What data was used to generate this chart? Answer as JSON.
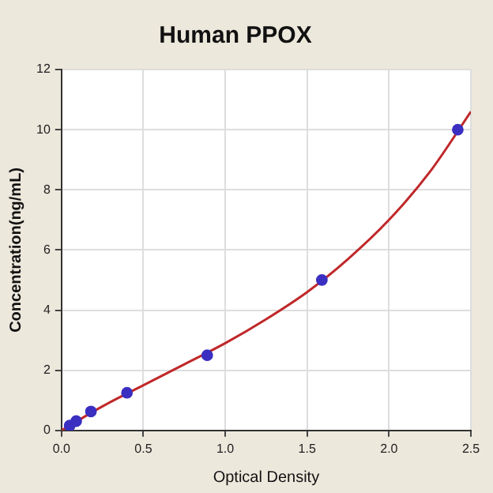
{
  "chart_data": {
    "type": "scatter",
    "title": "Human PPOX",
    "xlabel": "Optical Density",
    "ylabel": "Concentration(ng/mL)",
    "xlim": [
      0,
      2.5
    ],
    "xticks": [
      {
        "value": 0,
        "label": "0.0"
      },
      0.5,
      {
        "value": 1,
        "label": "1.0"
      },
      1.5,
      {
        "value": 2,
        "label": "2.0"
      },
      2.5
    ],
    "ylim": [
      0,
      12
    ],
    "yticks": [
      0,
      2,
      4,
      6,
      8,
      10,
      12
    ],
    "grid": true,
    "legend": false,
    "series": [
      {
        "marker": "circle",
        "color": "#3a2fc0",
        "x": [
          0.05,
          0.09,
          0.18,
          0.4,
          0.89,
          1.59,
          2.42
        ],
        "values": [
          0.16,
          0.31,
          0.63,
          1.25,
          2.5,
          5,
          10
        ]
      },
      {
        "type": "line",
        "marker": "none",
        "color": "#c0282a",
        "x": [
          0,
          0.25,
          0.5,
          0.75,
          1.0,
          1.25,
          1.5,
          1.75,
          2.0,
          2.25,
          2.5
        ],
        "values": [
          0,
          0.8,
          1.5,
          2.2,
          2.9,
          3.7,
          4.6,
          5.7,
          7.0,
          8.6,
          10.6
        ]
      }
    ]
  }
}
